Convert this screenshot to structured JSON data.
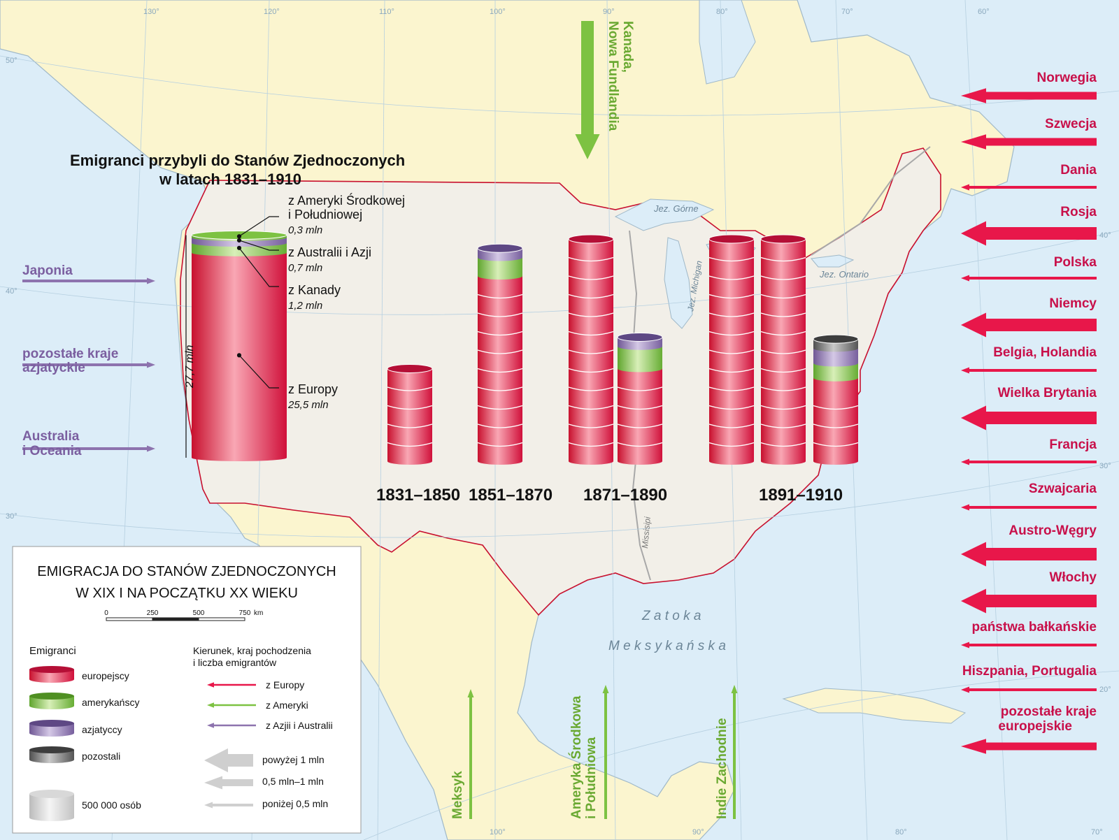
{
  "title": {
    "line1": "Emigranci przybyli do Stanów Zjednoczonych",
    "line2": "w latach 1831–1910"
  },
  "colors": {
    "europe": "#e8174a",
    "america": "#7dc242",
    "asia": "#8d73ae",
    "other": "#707070",
    "land": "#fbf5cf",
    "usa": "#f2efe8",
    "water": "#dcedf8"
  },
  "overall": {
    "total_label": "27,7 mln",
    "groups": [
      {
        "name": "z Europy",
        "value_label": "25,5 mln",
        "value": 25.5,
        "group": "europe"
      },
      {
        "name": "z Kanady",
        "value_label": "1,2 mln",
        "value": 1.2,
        "group": "america"
      },
      {
        "name": "z Australii i Azji",
        "value_label": "0,7 mln",
        "value": 0.7,
        "group": "asia"
      },
      {
        "name_line1": "z Ameryki Środkowej",
        "name_line2": "i Południowej",
        "value_label": "0,3 mln",
        "value": 0.3,
        "group": "america"
      }
    ]
  },
  "periods": [
    {
      "label": "1831–1850",
      "stacks": [
        {
          "europe": 5,
          "america": 0,
          "asia": 0,
          "other": 0
        }
      ]
    },
    {
      "label": "1851–1870",
      "stacks": [
        {
          "europe": 10,
          "america": 1,
          "asia": 0.5,
          "other": 0
        }
      ]
    },
    {
      "label": "1871–1890",
      "stacks": [
        {
          "europe": 12,
          "america": 0,
          "asia": 0,
          "other": 0
        },
        {
          "europe": 5,
          "america": 1.2,
          "asia": 0.5,
          "other": 0
        }
      ]
    },
    {
      "label": "1891–1910",
      "stacks": [
        {
          "europe": 12,
          "america": 0,
          "asia": 0,
          "other": 0
        },
        {
          "europe": 12,
          "america": 0,
          "asia": 0,
          "other": 0
        },
        {
          "europe": 4.5,
          "america": 0.8,
          "asia": 0.8,
          "other": 0.5
        }
      ]
    }
  ],
  "origins_europe": [
    {
      "name": "Norwegia",
      "size": "medium"
    },
    {
      "name": "Szwecja",
      "size": "medium"
    },
    {
      "name": "Dania",
      "size": "small"
    },
    {
      "name": "Rosja",
      "size": "large"
    },
    {
      "name": "Polska",
      "size": "small"
    },
    {
      "name": "Niemcy",
      "size": "large"
    },
    {
      "name": "Belgia, Holandia",
      "size": "small"
    },
    {
      "name": "Wielka Brytania",
      "size": "large"
    },
    {
      "name": "Francja",
      "size": "small"
    },
    {
      "name": "Szwajcaria",
      "size": "small"
    },
    {
      "name": "Austro-Węgry",
      "size": "large"
    },
    {
      "name": "Włochy",
      "size": "large"
    },
    {
      "name": "państwa bałkańskie",
      "size": "small"
    },
    {
      "name": "Hiszpania, Portugalia",
      "size": "small"
    },
    {
      "name_line1": "pozostałe kraje",
      "name_line2": "europejskie",
      "size": "medium"
    }
  ],
  "origins_asia": [
    {
      "name": "Japonia"
    },
    {
      "name_line1": "pozostałe kraje",
      "name_line2": "azjatyckie"
    },
    {
      "name_line1": "Australia",
      "name_line2": "i Oceania"
    }
  ],
  "origins_america": [
    {
      "name_line1": "Kanada,",
      "name_line2": "Nowa Fundlandia"
    },
    {
      "name": "Meksyk"
    },
    {
      "name_line1": "Ameryka Środkowa",
      "name_line2": "i Południowa"
    },
    {
      "name": "Indie Zachodnie"
    }
  ],
  "places": {
    "lake_superior": "Jez. Górne",
    "lake_michigan": "Jez. Michigan",
    "lake_ontario": "Jez. Ontario",
    "mississippi": "Missisipi",
    "gulf_line1": "Z a t o k a",
    "gulf_line2": "M e k s y k a ń s k a"
  },
  "graticule": {
    "longitudes": [
      "130°",
      "120°",
      "110°",
      "100°",
      "90°",
      "80°",
      "70°",
      "60°"
    ],
    "longitudes_bottom": [
      "100°",
      "90°",
      "80°",
      "70°"
    ],
    "latitudes_left": [
      "50°",
      "40°",
      "30°"
    ],
    "latitudes_right": [
      "40°",
      "30°",
      "20°"
    ]
  },
  "legend": {
    "title_line1": "EMIGRACJA DO STANÓW ZJEDNOCZONYCH",
    "title_line2": "W XIX I NA POCZĄTKU XX WIEKU",
    "scale_ticks": [
      "0",
      "250",
      "500",
      "750"
    ],
    "scale_unit": "km",
    "emigrants_heading": "Emigranci",
    "emigrants": [
      {
        "label": "europejscy",
        "group": "europe"
      },
      {
        "label": "amerykańscy",
        "group": "america"
      },
      {
        "label": "azjatyccy",
        "group": "asia"
      },
      {
        "label": "pozostali",
        "group": "other"
      }
    ],
    "unit_label": "500 000 osób",
    "direction_heading_line1": "Kierunek, kraj pochodzenia",
    "direction_heading_line2": "i liczba emigrantów",
    "directions": [
      {
        "label": "z Europy",
        "group": "europe"
      },
      {
        "label": "z Ameryki",
        "group": "america"
      },
      {
        "label": "z Azjii i Australii",
        "group": "asia"
      }
    ],
    "sizes": [
      {
        "label": "powyżej 1 mln",
        "size": "large"
      },
      {
        "label": "0,5 mln–1 mln",
        "size": "medium"
      },
      {
        "label": "poniżej 0,5 mln",
        "size": "small"
      }
    ]
  }
}
